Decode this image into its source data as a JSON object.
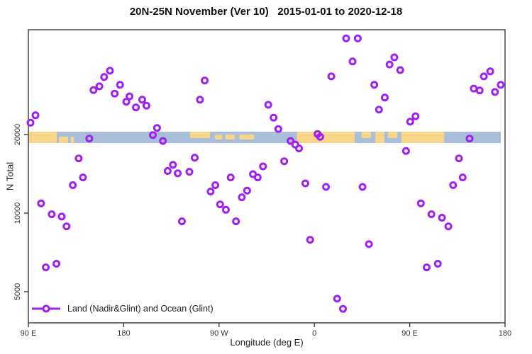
{
  "title": "20N-25N November (Ver 10)   2015-01-01 to 2020-12-18",
  "legend": {
    "label": "Land (Nadir&Glint) and Ocean (Glint)",
    "marker_color": "#A020F0"
  },
  "colors": {
    "point_stroke": "#A020F0",
    "frame": "#3a3a3a",
    "tick_text": "#333333",
    "ocean": "#A9BED8",
    "land": "#F8D589"
  },
  "map_band": {
    "description": "thin world-map strip drawn across the plot near N=20000",
    "ocean_color": "#A9BED8",
    "land_color": "#F8D589",
    "ocean_lon_range": [
      90,
      536
    ],
    "land_segments": [
      {
        "lon": [
          90,
          116.8
        ],
        "band": "full"
      },
      {
        "lon": [
          118.8,
          127.5
        ],
        "band": "bottom"
      },
      {
        "lon": [
          130,
          133
        ],
        "band": "bottom"
      },
      {
        "lon": [
          242.5,
          261.5
        ],
        "band": "top"
      },
      {
        "lon": [
          266,
          273
        ],
        "band": "mid"
      },
      {
        "lon": [
          276,
          285
        ],
        "band": "mid"
      },
      {
        "lon": [
          289,
          303
        ],
        "band": "mid"
      },
      {
        "lon": [
          343.5,
          398
        ],
        "band": "full"
      },
      {
        "lon": [
          404.5,
          413.5
        ],
        "band": "top"
      },
      {
        "lon": [
          417.5,
          426
        ],
        "band": "full"
      },
      {
        "lon": [
          429.5,
          438.5
        ],
        "band": "top"
      },
      {
        "lon": [
          442,
          482.5
        ],
        "band": "full"
      }
    ]
  },
  "chart_data": {
    "type": "scatter",
    "title": "20N-25N November (Ver 10)   2015-01-01 to 2020-12-18",
    "xlabel": "Longitude (deg E)",
    "ylabel": "N Total",
    "x_axis_note": "longitude axis runs 90E, 180, 90W, 0, 90E, 180 (values below are degrees East along that continuous 90..540 axis)",
    "y_scale": "log",
    "xlim": [
      90,
      540
    ],
    "ylim": [
      3800,
      50500
    ],
    "grid": false,
    "legend_position": "bottom-left",
    "x_ticks": [
      {
        "lon": 90,
        "label": "90 E"
      },
      {
        "lon": 180,
        "label": "180"
      },
      {
        "lon": 270,
        "label": "90 W"
      },
      {
        "lon": 360,
        "label": "0"
      },
      {
        "lon": 450,
        "label": "90 E"
      },
      {
        "lon": 540,
        "label": "180"
      }
    ],
    "y_ticks": [
      {
        "value": 20000,
        "label": "20000"
      },
      {
        "value": 10000,
        "label": "10000"
      },
      {
        "value": 5000,
        "label": "5000"
      }
    ],
    "series_name": "Land (Nadir&Glint) and Ocean (Glint)",
    "points": [
      [
        96.7,
        23700
      ],
      [
        92.0,
        22200
      ],
      [
        167.0,
        35100
      ],
      [
        161.5,
        33200
      ],
      [
        157.0,
        30600
      ],
      [
        151.5,
        29600
      ],
      [
        176.5,
        31000
      ],
      [
        171.5,
        28700
      ],
      [
        185.5,
        28000
      ],
      [
        182.5,
        26700
      ],
      [
        191.5,
        25400
      ],
      [
        197.5,
        27200
      ],
      [
        201.5,
        25800
      ],
      [
        211.5,
        21200
      ],
      [
        207.5,
        19900
      ],
      [
        217.0,
        18900
      ],
      [
        256.5,
        32200
      ],
      [
        252.0,
        27200
      ],
      [
        316.5,
        26000
      ],
      [
        321.5,
        23200
      ],
      [
        326.0,
        21000
      ],
      [
        376.0,
        33400
      ],
      [
        390.0,
        46700
      ],
      [
        401.0,
        46700
      ],
      [
        396.0,
        38100
      ],
      [
        435.5,
        39500
      ],
      [
        431.0,
        37100
      ],
      [
        441.0,
        35300
      ],
      [
        416.5,
        31000
      ],
      [
        426.5,
        27700
      ],
      [
        421.0,
        24900
      ],
      [
        450.5,
        22400
      ],
      [
        455.5,
        23500
      ],
      [
        526.0,
        34900
      ],
      [
        520.0,
        33400
      ],
      [
        510.5,
        30000
      ],
      [
        516.0,
        29500
      ],
      [
        536.0,
        31000
      ],
      [
        530.5,
        29100
      ],
      [
        147.5,
        19300
      ],
      [
        363.0,
        20100
      ],
      [
        365.5,
        19600
      ],
      [
        337.5,
        18900
      ],
      [
        342.0,
        18300
      ],
      [
        345.5,
        17700
      ],
      [
        506.5,
        19300
      ],
      [
        247.0,
        16300
      ],
      [
        242.0,
        14400
      ],
      [
        137.5,
        16200
      ],
      [
        141.5,
        13700
      ],
      [
        132.0,
        12800
      ],
      [
        102.0,
        10900
      ],
      [
        112.0,
        9900
      ],
      [
        121.5,
        9700
      ],
      [
        126.0,
        8900
      ],
      [
        221.5,
        14500
      ],
      [
        226.5,
        15300
      ],
      [
        231.0,
        14200
      ],
      [
        281.0,
        13700
      ],
      [
        302.0,
        14100
      ],
      [
        306.5,
        13700
      ],
      [
        311.5,
        15100
      ],
      [
        331.5,
        15800
      ],
      [
        266.5,
        12800
      ],
      [
        262.0,
        12100
      ],
      [
        296.5,
        12200
      ],
      [
        291.5,
        11500
      ],
      [
        271.0,
        10800
      ],
      [
        276.5,
        10300
      ],
      [
        286.0,
        9300
      ],
      [
        351.5,
        13000
      ],
      [
        371.0,
        12600
      ],
      [
        446.5,
        17300
      ],
      [
        496.5,
        16200
      ],
      [
        500.0,
        13700
      ],
      [
        491.0,
        12800
      ],
      [
        405.5,
        12600
      ],
      [
        460.5,
        10900
      ],
      [
        470.5,
        9900
      ],
      [
        480.5,
        9600
      ],
      [
        235.0,
        9300
      ],
      [
        486.5,
        8900
      ],
      [
        106.5,
        6200
      ],
      [
        116.5,
        6400
      ],
      [
        356.0,
        7900
      ],
      [
        411.5,
        7600
      ],
      [
        466.0,
        6200
      ],
      [
        476.5,
        6400
      ],
      [
        381.5,
        4700
      ],
      [
        387.0,
        4300
      ]
    ]
  }
}
